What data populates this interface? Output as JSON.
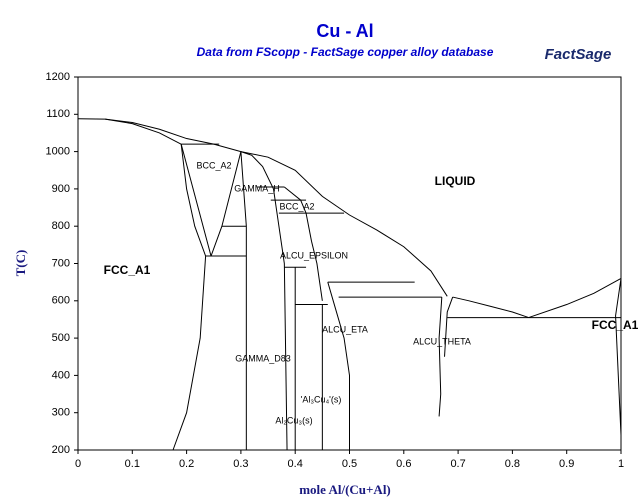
{
  "chart_data": {
    "type": "line",
    "title": "Cu - Al",
    "subtitle": "Data from FScopp - FactSage copper alloy database",
    "logo": "FactSage",
    "x_label": "mole Al/(Cu+Al)",
    "y_label": "T(C)",
    "xlim": [
      0,
      1
    ],
    "ylim": [
      200,
      1200
    ],
    "xticks": [
      0,
      0.1,
      0.2,
      0.3,
      0.4,
      0.5,
      0.6,
      0.7,
      0.8,
      0.9,
      1
    ],
    "yticks": [
      200,
      300,
      400,
      500,
      600,
      700,
      800,
      900,
      1000,
      1100,
      1200
    ],
    "color": "#000000",
    "annotations": [
      "LIQUID",
      "FCC_A1",
      "FCC_A1",
      "BCC_A2",
      "GAMMA_H",
      "BCC_A2",
      "ALCU_EPSILON",
      "ALCU_ETA",
      "ALCU_THETA",
      "GAMMA_D83",
      "'Al₃Cu₄'(s)",
      "Al₂Cu₃(s)"
    ],
    "series": [
      {
        "x": [
          0,
          0.05,
          0.1,
          0.15,
          0.2,
          0.25,
          0.3,
          0.35,
          0.4,
          0.45,
          0.5,
          0.55,
          0.6,
          0.65,
          0.68
        ],
        "values": [
          1088,
          1087,
          1078,
          1060,
          1035,
          1020,
          1000,
          985,
          950,
          880,
          830,
          790,
          745,
          680,
          612
        ]
      },
      {
        "x": [
          0.05,
          0.1,
          0.15,
          0.19
        ],
        "values": [
          1087,
          1075,
          1050,
          1020
        ]
      },
      {
        "x": [
          0.19,
          0.26
        ],
        "values": [
          1020,
          1020
        ]
      },
      {
        "x": [
          0.19,
          0.2,
          0.215,
          0.235,
          0.225,
          0.2,
          0.175
        ],
        "values": [
          1020,
          900,
          800,
          720,
          500,
          300,
          200
        ]
      },
      {
        "x": [
          0.19,
          0.245
        ],
        "values": [
          1020,
          720
        ]
      },
      {
        "x": [
          0.245,
          0.265,
          0.3
        ],
        "values": [
          720,
          800,
          1000
        ]
      },
      {
        "x": [
          0.235,
          0.31
        ],
        "values": [
          720,
          720
        ]
      },
      {
        "x": [
          0.265,
          0.31
        ],
        "values": [
          800,
          800
        ]
      },
      {
        "x": [
          0.3,
          0.31,
          0.31
        ],
        "values": [
          1000,
          800,
          200
        ]
      },
      {
        "x": [
          0.3,
          0.32,
          0.34,
          0.36,
          0.37,
          0.38,
          0.385
        ],
        "values": [
          1000,
          990,
          960,
          900,
          800,
          700,
          200
        ]
      },
      {
        "x": [
          0.33,
          0.38
        ],
        "values": [
          905,
          905
        ]
      },
      {
        "x": [
          0.355,
          0.42
        ],
        "values": [
          870,
          870
        ]
      },
      {
        "x": [
          0.37,
          0.49
        ],
        "values": [
          835,
          835
        ]
      },
      {
        "x": [
          0.38,
          0.41,
          0.42,
          0.43,
          0.44,
          0.45
        ],
        "values": [
          905,
          870,
          835,
          760,
          700,
          600
        ]
      },
      {
        "x": [
          0.38,
          0.42
        ],
        "values": [
          690,
          690
        ]
      },
      {
        "x": [
          0.4,
          0.4
        ],
        "values": [
          690,
          200
        ]
      },
      {
        "x": [
          0.4,
          0.46
        ],
        "values": [
          590,
          590
        ]
      },
      {
        "x": [
          0.45,
          0.45
        ],
        "values": [
          590,
          200
        ]
      },
      {
        "x": [
          0.46,
          0.47,
          0.49,
          0.5,
          0.5
        ],
        "values": [
          650,
          600,
          500,
          400,
          200
        ]
      },
      {
        "x": [
          0.46,
          0.62
        ],
        "values": [
          650,
          650
        ]
      },
      {
        "x": [
          0.48,
          0.67
        ],
        "values": [
          610,
          610
        ]
      },
      {
        "x": [
          0.67,
          0.665,
          0.668,
          0.665
        ],
        "values": [
          610,
          500,
          350,
          290
        ]
      },
      {
        "x": [
          0.69,
          0.68,
          0.675
        ],
        "values": [
          610,
          570,
          450
        ]
      },
      {
        "x": [
          0.68,
          1
        ],
        "values": [
          555,
          555
        ]
      },
      {
        "x": [
          0.69,
          0.72,
          0.76,
          0.8,
          0.83
        ],
        "values": [
          610,
          600,
          585,
          570,
          555
        ]
      },
      {
        "x": [
          0.83,
          0.9,
          0.95,
          1
        ],
        "values": [
          555,
          590,
          620,
          660
        ]
      },
      {
        "x": [
          1,
          0.99,
          0.995,
          1
        ],
        "values": [
          660,
          560,
          400,
          240
        ]
      }
    ]
  }
}
